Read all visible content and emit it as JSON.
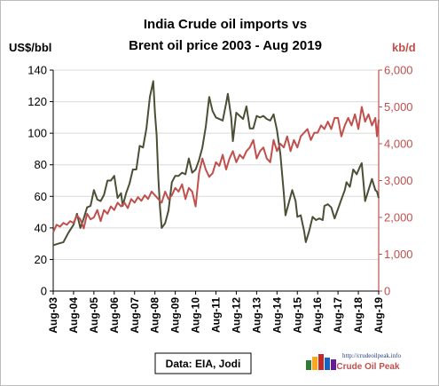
{
  "chart_data": {
    "type": "line",
    "title_lines": [
      "India Crude oil imports vs",
      "Brent oil price 2003 - Aug 2019"
    ],
    "y_left_label": "US$/bbl",
    "y_right_label": "kb/d",
    "y_left_range": [
      0,
      140
    ],
    "y_left_ticks": [
      "0",
      "20",
      "40",
      "60",
      "80",
      "100",
      "120",
      "140"
    ],
    "y_right_range": [
      0,
      6000
    ],
    "y_right_ticks": [
      "0",
      "1,000",
      "2,000",
      "3,000",
      "4,000",
      "5,000",
      "6,000"
    ],
    "x_range": [
      "2003-08",
      "2019-08"
    ],
    "x_ticks": [
      "Aug-03",
      "Aug-04",
      "Aug-05",
      "Aug-06",
      "Aug-07",
      "Aug-08",
      "Aug-09",
      "Aug-10",
      "Aug-11",
      "Aug-12",
      "Aug-13",
      "Aug-14",
      "Aug-15",
      "Aug-16",
      "Aug-17",
      "Aug-18",
      "Aug-19"
    ],
    "grid": true,
    "legend": "none",
    "source_note": "Data: EIA, Jodi",
    "series": [
      {
        "axis": "left",
        "color": "#4a4f35",
        "points": [
          [
            "2003-08",
            29
          ],
          [
            "2003-11",
            30
          ],
          [
            "2004-02",
            31
          ],
          [
            "2004-05",
            37
          ],
          [
            "2004-08",
            42
          ],
          [
            "2004-10",
            49
          ],
          [
            "2004-12",
            40
          ],
          [
            "2005-02",
            46
          ],
          [
            "2005-04",
            53
          ],
          [
            "2005-06",
            54
          ],
          [
            "2005-08",
            64
          ],
          [
            "2005-10",
            58
          ],
          [
            "2005-12",
            57
          ],
          [
            "2006-02",
            61
          ],
          [
            "2006-04",
            70
          ],
          [
            "2006-06",
            70
          ],
          [
            "2006-08",
            73
          ],
          [
            "2006-10",
            59
          ],
          [
            "2006-12",
            62
          ],
          [
            "2007-01",
            54
          ],
          [
            "2007-03",
            62
          ],
          [
            "2007-05",
            68
          ],
          [
            "2007-07",
            77
          ],
          [
            "2007-09",
            77
          ],
          [
            "2007-11",
            92
          ],
          [
            "2008-01",
            91
          ],
          [
            "2008-03",
            103
          ],
          [
            "2008-05",
            123
          ],
          [
            "2008-07",
            133
          ],
          [
            "2008-08",
            113
          ],
          [
            "2008-09",
            99
          ],
          [
            "2008-10",
            72
          ],
          [
            "2008-11",
            53
          ],
          [
            "2008-12",
            40
          ],
          [
            "2009-02",
            43
          ],
          [
            "2009-04",
            51
          ],
          [
            "2009-06",
            69
          ],
          [
            "2009-08",
            73
          ],
          [
            "2009-10",
            73
          ],
          [
            "2009-12",
            75
          ],
          [
            "2010-02",
            74
          ],
          [
            "2010-04",
            84
          ],
          [
            "2010-06",
            75
          ],
          [
            "2010-08",
            77
          ],
          [
            "2010-10",
            83
          ],
          [
            "2010-12",
            91
          ],
          [
            "2011-02",
            104
          ],
          [
            "2011-04",
            123
          ],
          [
            "2011-06",
            114
          ],
          [
            "2011-08",
            110
          ],
          [
            "2011-10",
            109
          ],
          [
            "2011-12",
            108
          ],
          [
            "2012-02",
            119
          ],
          [
            "2012-03",
            125
          ],
          [
            "2012-05",
            110
          ],
          [
            "2012-06",
            95
          ],
          [
            "2012-08",
            113
          ],
          [
            "2012-10",
            111
          ],
          [
            "2012-12",
            109
          ],
          [
            "2013-02",
            117
          ],
          [
            "2013-04",
            103
          ],
          [
            "2013-06",
            103
          ],
          [
            "2013-08",
            111
          ],
          [
            "2013-10",
            110
          ],
          [
            "2013-12",
            111
          ],
          [
            "2014-02",
            109
          ],
          [
            "2014-04",
            108
          ],
          [
            "2014-06",
            112
          ],
          [
            "2014-08",
            102
          ],
          [
            "2014-10",
            87
          ],
          [
            "2014-12",
            62
          ],
          [
            "2015-01",
            48
          ],
          [
            "2015-03",
            56
          ],
          [
            "2015-05",
            64
          ],
          [
            "2015-07",
            57
          ],
          [
            "2015-08",
            47
          ],
          [
            "2015-10",
            48
          ],
          [
            "2015-12",
            38
          ],
          [
            "2016-01",
            31
          ],
          [
            "2016-03",
            38
          ],
          [
            "2016-05",
            47
          ],
          [
            "2016-07",
            45
          ],
          [
            "2016-09",
            46
          ],
          [
            "2016-11",
            45
          ],
          [
            "2016-12",
            54
          ],
          [
            "2017-02",
            55
          ],
          [
            "2017-04",
            53
          ],
          [
            "2017-06",
            46
          ],
          [
            "2017-08",
            52
          ],
          [
            "2017-10",
            58
          ],
          [
            "2017-12",
            64
          ],
          [
            "2018-01",
            69
          ],
          [
            "2018-03",
            66
          ],
          [
            "2018-05",
            77
          ],
          [
            "2018-07",
            74
          ],
          [
            "2018-09",
            79
          ],
          [
            "2018-10",
            81
          ],
          [
            "2018-12",
            57
          ],
          [
            "2019-02",
            64
          ],
          [
            "2019-04",
            71
          ],
          [
            "2019-06",
            64
          ],
          [
            "2019-07",
            63
          ],
          [
            "2019-08",
            59
          ]
        ]
      },
      {
        "axis": "right",
        "color": "#c0504d",
        "points": [
          [
            "2003-08",
            1600
          ],
          [
            "2003-10",
            1800
          ],
          [
            "2003-12",
            1750
          ],
          [
            "2004-02",
            1850
          ],
          [
            "2004-04",
            1800
          ],
          [
            "2004-06",
            1900
          ],
          [
            "2004-08",
            1850
          ],
          [
            "2004-10",
            2050
          ],
          [
            "2004-12",
            1950
          ],
          [
            "2005-02",
            1700
          ],
          [
            "2005-04",
            2100
          ],
          [
            "2005-06",
            1950
          ],
          [
            "2005-08",
            2000
          ],
          [
            "2005-10",
            2200
          ],
          [
            "2005-12",
            1900
          ],
          [
            "2006-02",
            2200
          ],
          [
            "2006-04",
            2100
          ],
          [
            "2006-06",
            2300
          ],
          [
            "2006-08",
            2200
          ],
          [
            "2006-10",
            2400
          ],
          [
            "2006-12",
            2300
          ],
          [
            "2007-02",
            2400
          ],
          [
            "2007-04",
            2250
          ],
          [
            "2007-06",
            2500
          ],
          [
            "2007-08",
            2400
          ],
          [
            "2007-10",
            2550
          ],
          [
            "2007-12",
            2450
          ],
          [
            "2008-02",
            2600
          ],
          [
            "2008-04",
            2500
          ],
          [
            "2008-06",
            2700
          ],
          [
            "2008-08",
            2600
          ],
          [
            "2008-10",
            2500
          ],
          [
            "2008-12",
            2400
          ],
          [
            "2009-02",
            2700
          ],
          [
            "2009-04",
            2500
          ],
          [
            "2009-06",
            2600
          ],
          [
            "2009-08",
            2800
          ],
          [
            "2009-10",
            2700
          ],
          [
            "2009-12",
            2900
          ],
          [
            "2010-02",
            2500
          ],
          [
            "2010-04",
            2800
          ],
          [
            "2010-06",
            2700
          ],
          [
            "2010-08",
            2300
          ],
          [
            "2010-10",
            3200
          ],
          [
            "2010-12",
            3600
          ],
          [
            "2011-02",
            3300
          ],
          [
            "2011-04",
            3100
          ],
          [
            "2011-06",
            3200
          ],
          [
            "2011-08",
            3500
          ],
          [
            "2011-10",
            3400
          ],
          [
            "2011-12",
            3700
          ],
          [
            "2012-02",
            3300
          ],
          [
            "2012-04",
            3600
          ],
          [
            "2012-06",
            3800
          ],
          [
            "2012-08",
            3500
          ],
          [
            "2012-10",
            3700
          ],
          [
            "2012-12",
            3600
          ],
          [
            "2013-02",
            3800
          ],
          [
            "2013-04",
            3900
          ],
          [
            "2013-06",
            4100
          ],
          [
            "2013-08",
            3600
          ],
          [
            "2013-10",
            3800
          ],
          [
            "2013-12",
            3900
          ],
          [
            "2014-02",
            3600
          ],
          [
            "2014-04",
            3500
          ],
          [
            "2014-06",
            4100
          ],
          [
            "2014-08",
            3800
          ],
          [
            "2014-10",
            4000
          ],
          [
            "2014-12",
            3900
          ],
          [
            "2015-02",
            4200
          ],
          [
            "2015-04",
            3800
          ],
          [
            "2015-06",
            4100
          ],
          [
            "2015-08",
            3900
          ],
          [
            "2015-10",
            4200
          ],
          [
            "2015-12",
            4300
          ],
          [
            "2016-02",
            4400
          ],
          [
            "2016-04",
            4100
          ],
          [
            "2016-06",
            4300
          ],
          [
            "2016-08",
            4300
          ],
          [
            "2016-10",
            4500
          ],
          [
            "2016-12",
            4400
          ],
          [
            "2017-02",
            4600
          ],
          [
            "2017-04",
            4400
          ],
          [
            "2017-06",
            4700
          ],
          [
            "2017-08",
            4700
          ],
          [
            "2017-10",
            4200
          ],
          [
            "2017-12",
            4500
          ],
          [
            "2018-02",
            4700
          ],
          [
            "2018-04",
            4500
          ],
          [
            "2018-06",
            4800
          ],
          [
            "2018-08",
            4400
          ],
          [
            "2018-10",
            5000
          ],
          [
            "2018-12",
            4600
          ],
          [
            "2019-02",
            4800
          ],
          [
            "2019-04",
            4500
          ],
          [
            "2019-06",
            4700
          ],
          [
            "2019-07",
            4200
          ],
          [
            "2019-08",
            4650
          ]
        ]
      }
    ]
  },
  "logo": {
    "url_text": "http://crudeoilpeak.info",
    "name": "Crude Oil Peak"
  },
  "colors": {
    "left_axis": "#000000",
    "right_axis": "#c0504d",
    "grid": "#d9d9d9"
  }
}
